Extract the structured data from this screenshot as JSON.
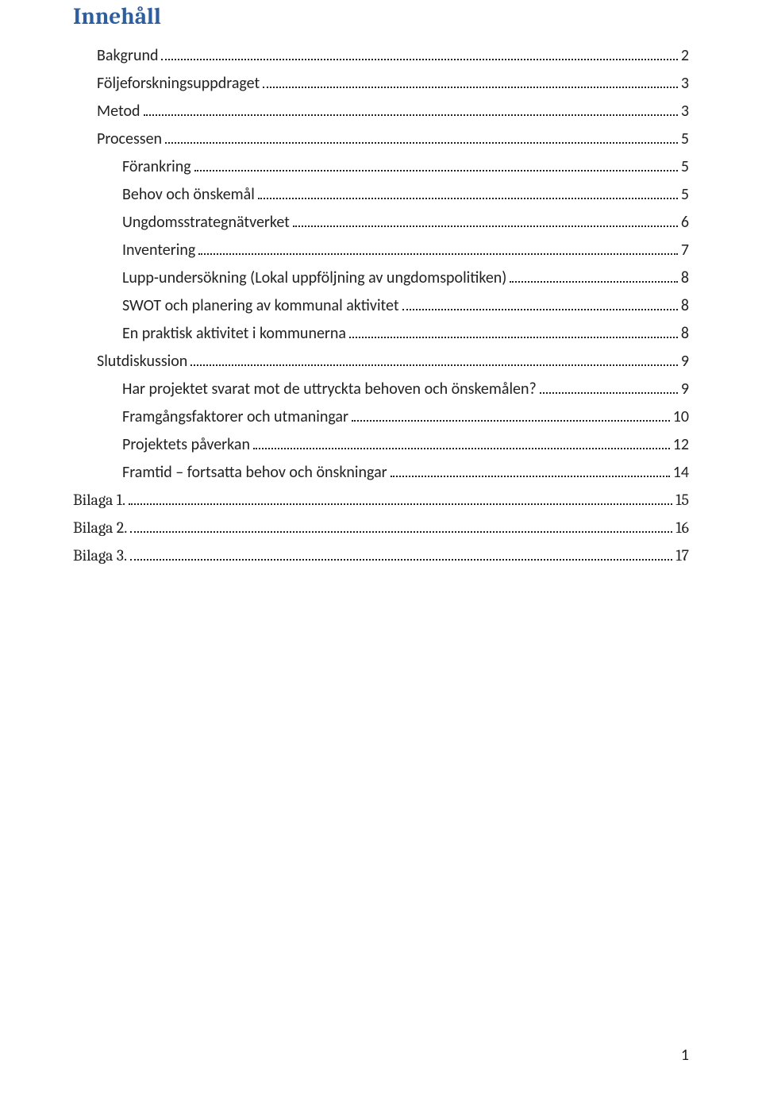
{
  "title": "Innehåll",
  "page_number": "1",
  "toc": [
    {
      "label": "Bakgrund",
      "page": "2",
      "level": 1,
      "serif": false
    },
    {
      "label": "Följeforskningsuppdraget",
      "page": "3",
      "level": 1,
      "serif": false
    },
    {
      "label": "Metod",
      "page": "3",
      "level": 1,
      "serif": false
    },
    {
      "label": "Processen",
      "page": "5",
      "level": 1,
      "serif": false
    },
    {
      "label": "Förankring",
      "page": "5",
      "level": 2,
      "serif": false
    },
    {
      "label": "Behov och önskemål",
      "page": "5",
      "level": 2,
      "serif": false
    },
    {
      "label": "Ungdomsstrategnätverket",
      "page": "6",
      "level": 2,
      "serif": false
    },
    {
      "label": "Inventering",
      "page": "7",
      "level": 2,
      "serif": false
    },
    {
      "label": "Lupp-undersökning (Lokal uppföljning av ungdomspolitiken)",
      "page": "8",
      "level": 2,
      "serif": false
    },
    {
      "label": "SWOT och planering av kommunal aktivitet",
      "page": "8",
      "level": 2,
      "serif": false
    },
    {
      "label": "En praktisk aktivitet i kommunerna",
      "page": "8",
      "level": 2,
      "serif": false
    },
    {
      "label": "Slutdiskussion",
      "page": "9",
      "level": 1,
      "serif": false
    },
    {
      "label": "Har projektet svarat mot de uttryckta behoven och önskemålen?",
      "page": "9",
      "level": 2,
      "serif": false
    },
    {
      "label": "Framgångsfaktorer och utmaningar",
      "page": "10",
      "level": 2,
      "serif": false
    },
    {
      "label": "Projektets påverkan",
      "page": "12",
      "level": 2,
      "serif": false
    },
    {
      "label": "Framtid – fortsatta behov och önskningar",
      "page": "14",
      "level": 2,
      "serif": false
    },
    {
      "label": "Bilaga 1. ",
      "page": "15",
      "level": 0,
      "serif": true
    },
    {
      "label": "Bilaga 2. ",
      "page": "16",
      "level": 0,
      "serif": true
    },
    {
      "label": "Bilaga 3. ",
      "page": "17",
      "level": 0,
      "serif": true
    }
  ],
  "colors": {
    "title": "#2e5e9e",
    "text": "#222222",
    "background": "#ffffff"
  },
  "typography": {
    "title_fontsize": 29,
    "body_fontsize": 20,
    "title_font": "Cambria",
    "body_font": "Calibri"
  }
}
